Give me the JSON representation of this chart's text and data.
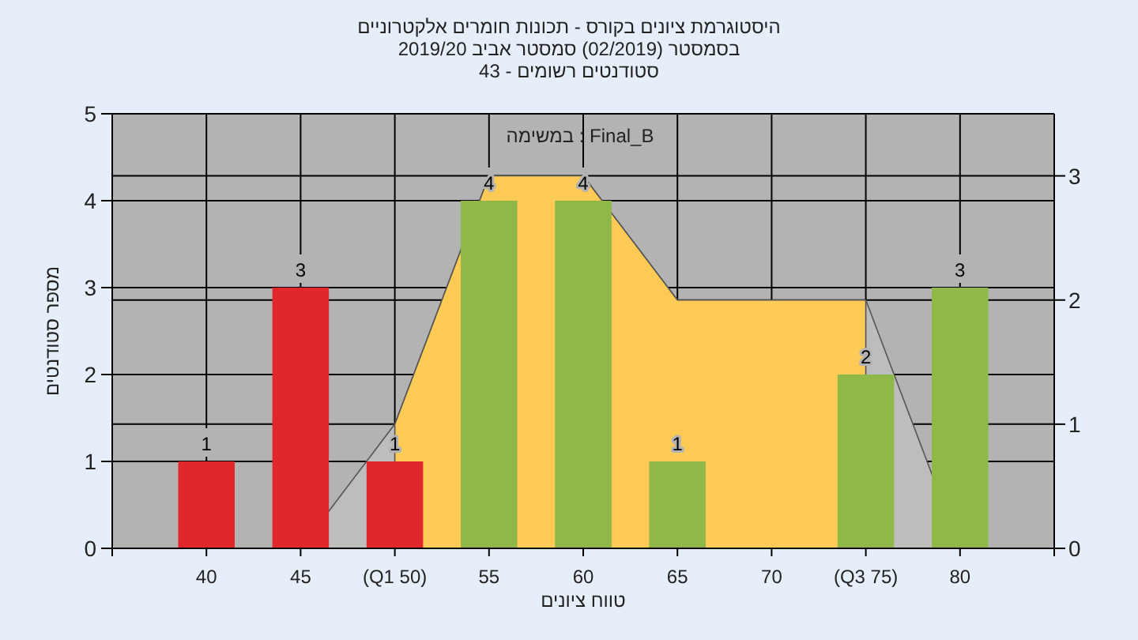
{
  "chart_data": {
    "type": "bar",
    "title": "היסטוגרמת ציונים בקורס - תכונות חומרים אלקטרוניים",
    "subtitle": "בסמסטר  (02/2019)  סמסטר אביב 2019/20\nסטודנטים רשומים - 43",
    "xlabel": "טווח ציונים",
    "ylabel": "מספר סטודנטים",
    "annotations": [
      "Final_B : במשימה"
    ],
    "categories": [
      "40",
      "45",
      "(Q1 50)",
      "55",
      "60",
      "65",
      "70",
      "(Q3 75)",
      "80"
    ],
    "series": [
      {
        "type": "area",
        "axis": "y2",
        "color": "#bdbdbd",
        "values": [
          null,
          0,
          1,
          3,
          3,
          2,
          2,
          2,
          0
        ]
      },
      {
        "type": "area",
        "axis": "y2",
        "color": "#fdca56",
        "values": [
          null,
          null,
          1,
          3,
          3,
          2,
          2,
          2,
          null
        ]
      },
      {
        "colors": [
          "#e0282c",
          "#e0282c",
          "#e0282c",
          "#8fb848",
          "#8fb848",
          "#8fb848",
          "#8fb848",
          "#8fb848",
          "#8fb848"
        ],
        "values": [
          1,
          3,
          1,
          4,
          4,
          1,
          0,
          2,
          3
        ],
        "value_labels": [
          "1",
          "3",
          "1",
          "4",
          "4",
          "1",
          null,
          "2",
          "3"
        ]
      }
    ],
    "ylim": [
      0,
      5
    ],
    "yticks": [
      0,
      1,
      2,
      3,
      4,
      5
    ],
    "y2lim": [
      0,
      3.5
    ],
    "y2ticks": [
      0,
      1,
      2,
      3
    ],
    "grid": true
  }
}
